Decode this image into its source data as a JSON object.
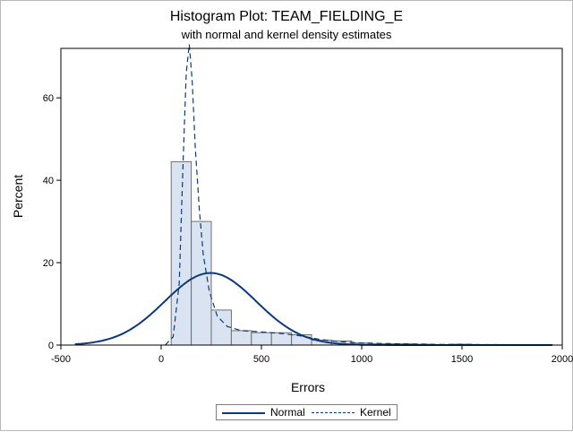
{
  "chart_data": {
    "type": "bar",
    "title": "Histogram Plot: TEAM_FIELDING_E",
    "subtitle": "with normal and kernel density estimates",
    "xlabel": "Errors",
    "ylabel": "Percent",
    "xlim": [
      -500,
      2000
    ],
    "ylim": [
      0,
      72
    ],
    "xticks": [
      "-500",
      "0",
      "500",
      "1000",
      "1500",
      "2000"
    ],
    "yticks": [
      "0",
      "20",
      "40",
      "60"
    ],
    "bin_width": 100,
    "bins": [
      {
        "x0": 50,
        "x1": 150,
        "value": 44.5
      },
      {
        "x0": 150,
        "x1": 250,
        "value": 30.0
      },
      {
        "x0": 250,
        "x1": 350,
        "value": 8.5
      },
      {
        "x0": 350,
        "x1": 450,
        "value": 3.5
      },
      {
        "x0": 450,
        "x1": 550,
        "value": 3.0
      },
      {
        "x0": 550,
        "x1": 650,
        "value": 3.0
      },
      {
        "x0": 650,
        "x1": 750,
        "value": 2.5
      },
      {
        "x0": 750,
        "x1": 850,
        "value": 1.2
      },
      {
        "x0": 850,
        "x1": 950,
        "value": 1.0
      },
      {
        "x0": 950,
        "x1": 1050,
        "value": 0.5
      },
      {
        "x0": 1050,
        "x1": 1150,
        "value": 0.3
      },
      {
        "x0": 1150,
        "x1": 1250,
        "value": 0.3
      },
      {
        "x0": 1250,
        "x1": 1350,
        "value": 0.2
      },
      {
        "x0": 1350,
        "x1": 1450,
        "value": 0.1
      },
      {
        "x0": 1450,
        "x1": 1550,
        "value": 0.2
      },
      {
        "x0": 1550,
        "x1": 1650,
        "value": 0.1
      },
      {
        "x0": 1650,
        "x1": 1750,
        "value": 0.1
      },
      {
        "x0": 1750,
        "x1": 1850,
        "value": 0.1
      },
      {
        "x0": 1850,
        "x1": 1950,
        "value": 0.1
      }
    ],
    "series": [
      {
        "name": "Normal",
        "style": "solid",
        "mean": 246,
        "sd": 228,
        "peak": 17.5,
        "x_range": [
          -430,
          1950
        ]
      },
      {
        "name": "Kernel",
        "style": "dashed",
        "points": [
          [
            20,
            0
          ],
          [
            60,
            2
          ],
          [
            90,
            15
          ],
          [
            110,
            45
          ],
          [
            125,
            66
          ],
          [
            140,
            73
          ],
          [
            155,
            64
          ],
          [
            170,
            48
          ],
          [
            190,
            33
          ],
          [
            210,
            22
          ],
          [
            240,
            13
          ],
          [
            280,
            7
          ],
          [
            330,
            4.5
          ],
          [
            400,
            3.5
          ],
          [
            500,
            3.2
          ],
          [
            600,
            2.8
          ],
          [
            700,
            2.2
          ],
          [
            800,
            1.3
          ],
          [
            900,
            0.8
          ],
          [
            1000,
            0.5
          ],
          [
            1100,
            0.4
          ],
          [
            1200,
            0.3
          ],
          [
            1300,
            0.25
          ],
          [
            1400,
            0.15
          ],
          [
            1500,
            0.2
          ],
          [
            1600,
            0.1
          ],
          [
            1700,
            0.1
          ],
          [
            1800,
            0.05
          ],
          [
            1950,
            0.05
          ]
        ]
      }
    ],
    "colors": {
      "bar_fill": "#dae3f1",
      "bar_stroke": "#6f6f6f",
      "curve": "#0b3a7a"
    },
    "grid": false,
    "legend_position": "bottom-center"
  }
}
